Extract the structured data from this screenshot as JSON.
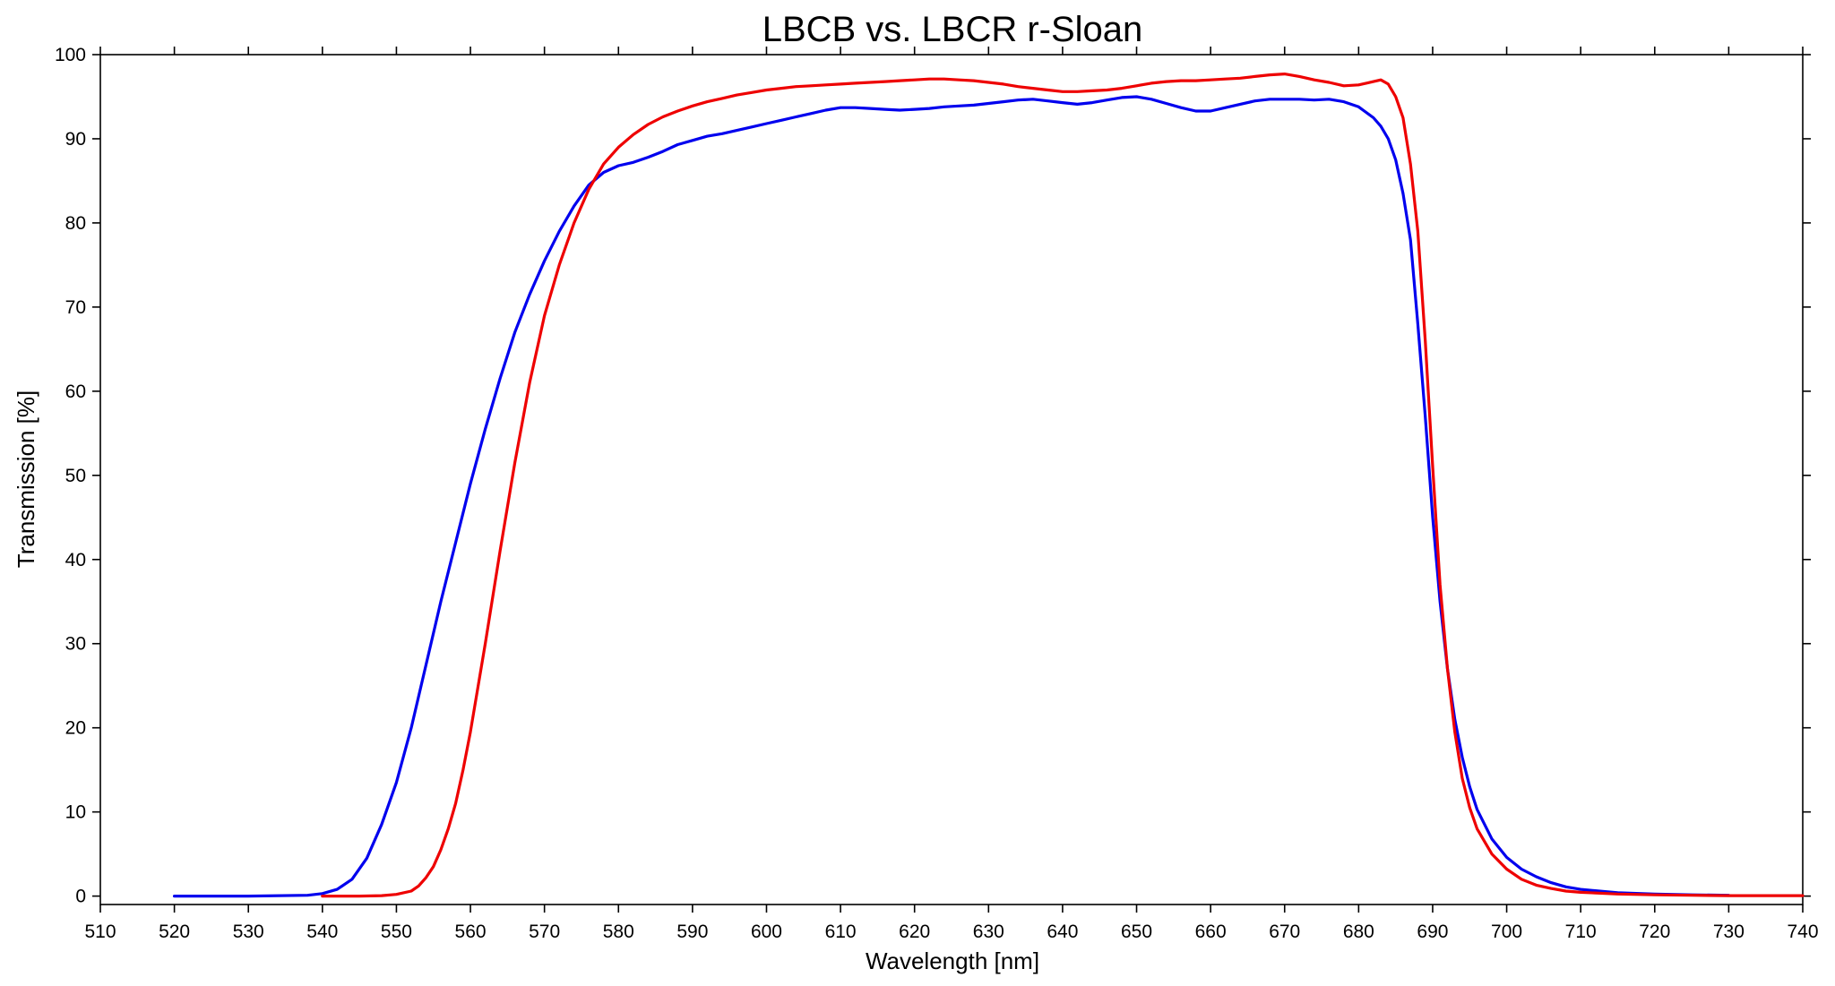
{
  "chart_data": {
    "type": "line",
    "title": "LBCB vs. LBCR r-Sloan",
    "xlabel": "Wavelength [nm]",
    "ylabel": "Transmission [%]",
    "xlim": [
      510,
      740
    ],
    "ylim": [
      -1,
      100
    ],
    "xticks": [
      510,
      520,
      530,
      540,
      550,
      560,
      570,
      580,
      590,
      600,
      610,
      620,
      630,
      640,
      650,
      660,
      670,
      680,
      690,
      700,
      710,
      720,
      730,
      740
    ],
    "yticks": [
      0,
      10,
      20,
      30,
      40,
      50,
      60,
      70,
      80,
      90,
      100
    ],
    "grid": false,
    "series": [
      {
        "color": "#0000ee",
        "points": [
          [
            520,
            0
          ],
          [
            530,
            0
          ],
          [
            538,
            0.1
          ],
          [
            540,
            0.3
          ],
          [
            542,
            0.8
          ],
          [
            544,
            2
          ],
          [
            546,
            4.5
          ],
          [
            548,
            8.5
          ],
          [
            550,
            13.5
          ],
          [
            552,
            20
          ],
          [
            554,
            27.5
          ],
          [
            556,
            35
          ],
          [
            558,
            42
          ],
          [
            560,
            49
          ],
          [
            562,
            55.5
          ],
          [
            564,
            61.5
          ],
          [
            566,
            67
          ],
          [
            568,
            71.5
          ],
          [
            570,
            75.5
          ],
          [
            572,
            79
          ],
          [
            574,
            82
          ],
          [
            576,
            84.5
          ],
          [
            578,
            86
          ],
          [
            580,
            86.8
          ],
          [
            582,
            87.2
          ],
          [
            584,
            87.8
          ],
          [
            586,
            88.5
          ],
          [
            588,
            89.3
          ],
          [
            590,
            89.8
          ],
          [
            592,
            90.3
          ],
          [
            594,
            90.6
          ],
          [
            596,
            91
          ],
          [
            598,
            91.4
          ],
          [
            600,
            91.8
          ],
          [
            602,
            92.2
          ],
          [
            604,
            92.6
          ],
          [
            606,
            93
          ],
          [
            608,
            93.4
          ],
          [
            610,
            93.7
          ],
          [
            612,
            93.7
          ],
          [
            614,
            93.6
          ],
          [
            616,
            93.5
          ],
          [
            618,
            93.4
          ],
          [
            620,
            93.5
          ],
          [
            622,
            93.6
          ],
          [
            624,
            93.8
          ],
          [
            626,
            93.9
          ],
          [
            628,
            94
          ],
          [
            630,
            94.2
          ],
          [
            632,
            94.4
          ],
          [
            634,
            94.6
          ],
          [
            636,
            94.7
          ],
          [
            638,
            94.5
          ],
          [
            640,
            94.3
          ],
          [
            642,
            94.1
          ],
          [
            644,
            94.3
          ],
          [
            646,
            94.6
          ],
          [
            648,
            94.9
          ],
          [
            650,
            95
          ],
          [
            652,
            94.7
          ],
          [
            654,
            94.2
          ],
          [
            656,
            93.7
          ],
          [
            658,
            93.3
          ],
          [
            660,
            93.3
          ],
          [
            662,
            93.7
          ],
          [
            664,
            94.1
          ],
          [
            666,
            94.5
          ],
          [
            668,
            94.7
          ],
          [
            670,
            94.7
          ],
          [
            672,
            94.7
          ],
          [
            674,
            94.6
          ],
          [
            676,
            94.7
          ],
          [
            678,
            94.4
          ],
          [
            680,
            93.8
          ],
          [
            682,
            92.5
          ],
          [
            683,
            91.5
          ],
          [
            684,
            90
          ],
          [
            685,
            87.5
          ],
          [
            686,
            83.5
          ],
          [
            687,
            78
          ],
          [
            688,
            68
          ],
          [
            689,
            57
          ],
          [
            690,
            45
          ],
          [
            691,
            35
          ],
          [
            692,
            27
          ],
          [
            693,
            21
          ],
          [
            694,
            16.5
          ],
          [
            695,
            13
          ],
          [
            696,
            10.3
          ],
          [
            698,
            6.8
          ],
          [
            700,
            4.6
          ],
          [
            702,
            3.2
          ],
          [
            704,
            2.3
          ],
          [
            706,
            1.6
          ],
          [
            708,
            1.1
          ],
          [
            710,
            0.8
          ],
          [
            715,
            0.4
          ],
          [
            720,
            0.25
          ],
          [
            725,
            0.15
          ],
          [
            730,
            0.1
          ]
        ]
      },
      {
        "color": "#ee0000",
        "points": [
          [
            540,
            0
          ],
          [
            545,
            0
          ],
          [
            548,
            0.05
          ],
          [
            550,
            0.2
          ],
          [
            552,
            0.6
          ],
          [
            553,
            1.2
          ],
          [
            554,
            2.2
          ],
          [
            555,
            3.5
          ],
          [
            556,
            5.5
          ],
          [
            557,
            8
          ],
          [
            558,
            11
          ],
          [
            559,
            15
          ],
          [
            560,
            19.5
          ],
          [
            562,
            30
          ],
          [
            564,
            41
          ],
          [
            566,
            51.5
          ],
          [
            568,
            61
          ],
          [
            570,
            69
          ],
          [
            572,
            75
          ],
          [
            574,
            80
          ],
          [
            576,
            84
          ],
          [
            578,
            87
          ],
          [
            580,
            89
          ],
          [
            582,
            90.5
          ],
          [
            584,
            91.7
          ],
          [
            586,
            92.6
          ],
          [
            588,
            93.3
          ],
          [
            590,
            93.9
          ],
          [
            592,
            94.4
          ],
          [
            594,
            94.8
          ],
          [
            596,
            95.2
          ],
          [
            598,
            95.5
          ],
          [
            600,
            95.8
          ],
          [
            602,
            96
          ],
          [
            604,
            96.2
          ],
          [
            606,
            96.3
          ],
          [
            608,
            96.4
          ],
          [
            610,
            96.5
          ],
          [
            612,
            96.6
          ],
          [
            614,
            96.7
          ],
          [
            616,
            96.8
          ],
          [
            618,
            96.9
          ],
          [
            620,
            97
          ],
          [
            622,
            97.1
          ],
          [
            624,
            97.1
          ],
          [
            626,
            97
          ],
          [
            628,
            96.9
          ],
          [
            630,
            96.7
          ],
          [
            632,
            96.5
          ],
          [
            634,
            96.2
          ],
          [
            636,
            96
          ],
          [
            638,
            95.8
          ],
          [
            640,
            95.6
          ],
          [
            642,
            95.6
          ],
          [
            644,
            95.7
          ],
          [
            646,
            95.8
          ],
          [
            648,
            96
          ],
          [
            650,
            96.3
          ],
          [
            652,
            96.6
          ],
          [
            654,
            96.8
          ],
          [
            656,
            96.9
          ],
          [
            658,
            96.9
          ],
          [
            660,
            97
          ],
          [
            662,
            97.1
          ],
          [
            664,
            97.2
          ],
          [
            666,
            97.4
          ],
          [
            668,
            97.6
          ],
          [
            670,
            97.7
          ],
          [
            672,
            97.4
          ],
          [
            674,
            97
          ],
          [
            676,
            96.7
          ],
          [
            678,
            96.3
          ],
          [
            680,
            96.4
          ],
          [
            682,
            96.8
          ],
          [
            683,
            97
          ],
          [
            684,
            96.5
          ],
          [
            685,
            95
          ],
          [
            686,
            92.5
          ],
          [
            687,
            87
          ],
          [
            688,
            79
          ],
          [
            689,
            66
          ],
          [
            690,
            51
          ],
          [
            691,
            37
          ],
          [
            692,
            27
          ],
          [
            693,
            19.5
          ],
          [
            694,
            14
          ],
          [
            695,
            10.5
          ],
          [
            696,
            8
          ],
          [
            698,
            5
          ],
          [
            700,
            3.2
          ],
          [
            702,
            2
          ],
          [
            704,
            1.3
          ],
          [
            706,
            0.9
          ],
          [
            708,
            0.6
          ],
          [
            710,
            0.45
          ],
          [
            715,
            0.25
          ],
          [
            720,
            0.15
          ],
          [
            725,
            0.1
          ],
          [
            730,
            0.05
          ],
          [
            735,
            0.05
          ],
          [
            740,
            0.05
          ]
        ]
      }
    ]
  }
}
